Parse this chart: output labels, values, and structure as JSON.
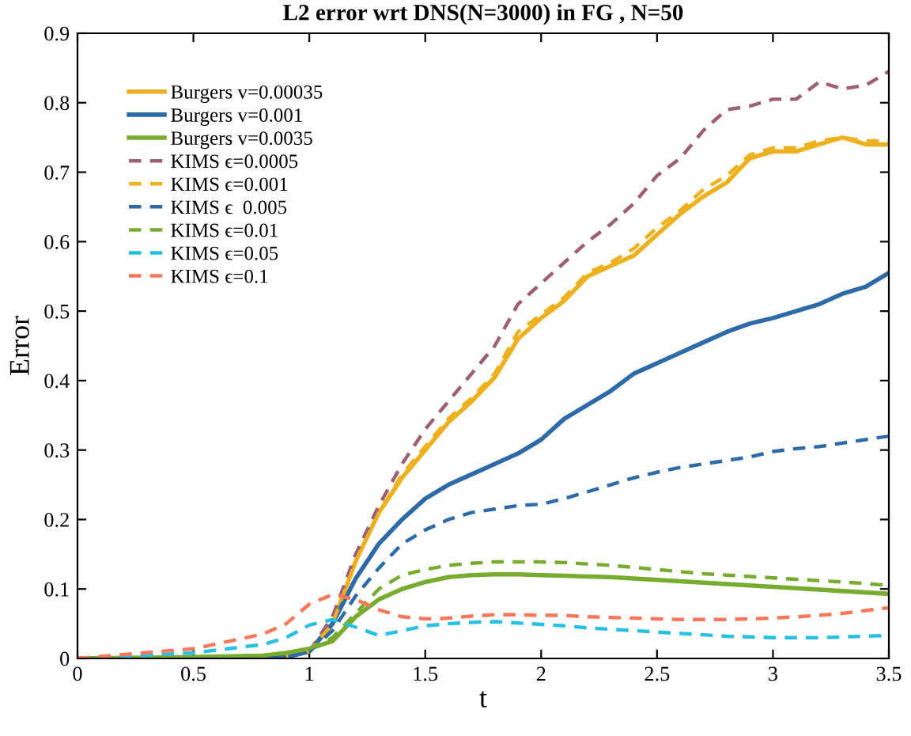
{
  "chart_data": {
    "type": "line",
    "title": "L2 error wrt DNS(N=3000) in FG , N=50",
    "xlabel": "t",
    "ylabel": "Error",
    "x": [
      0,
      0.5,
      0.8,
      0.9,
      1.0,
      1.1,
      1.2,
      1.3,
      1.4,
      1.5,
      1.6,
      1.7,
      1.8,
      1.9,
      2.0,
      2.1,
      2.2,
      2.3,
      2.4,
      2.5,
      2.6,
      2.7,
      2.8,
      2.9,
      3.0,
      3.1,
      3.2,
      3.3,
      3.4,
      3.5
    ],
    "series": [
      {
        "name": "Burgers v=0.00035",
        "color": "#edb120",
        "line_style": "solid",
        "values": [
          null,
          null,
          null,
          0.003,
          0.01,
          0.05,
          0.14,
          0.21,
          0.26,
          0.3,
          0.34,
          0.37,
          0.405,
          0.46,
          0.49,
          0.515,
          0.55,
          0.565,
          0.58,
          0.61,
          0.64,
          0.665,
          0.685,
          0.72,
          0.73,
          0.73,
          0.74,
          0.75,
          0.74,
          0.74
        ]
      },
      {
        "name": "Burgers v=0.001",
        "color": "#2e6aa8",
        "line_style": "solid",
        "values": [
          0,
          0,
          0,
          0.002,
          0.01,
          0.05,
          0.115,
          0.165,
          0.2,
          0.23,
          0.25,
          0.265,
          0.28,
          0.295,
          0.315,
          0.345,
          0.365,
          0.385,
          0.41,
          0.425,
          0.44,
          0.455,
          0.47,
          0.482,
          0.49,
          0.5,
          0.51,
          0.525,
          0.535,
          0.555
        ]
      },
      {
        "name": "Burgers v=0.0035",
        "color": "#77ac30",
        "line_style": "solid",
        "values": [
          0,
          0.002,
          0.004,
          0.008,
          0.014,
          0.025,
          0.06,
          0.085,
          0.1,
          0.11,
          0.117,
          0.12,
          0.121,
          0.121,
          0.12,
          0.119,
          0.118,
          0.117,
          0.115,
          0.113,
          0.111,
          0.109,
          0.107,
          0.105,
          0.103,
          0.101,
          0.099,
          0.097,
          0.095,
          0.093
        ]
      },
      {
        "name": "KIMS ϵ=0.0005",
        "color": "#9e5f73",
        "line_style": "dashed",
        "values": [
          0,
          0,
          0,
          0.003,
          0.01,
          0.06,
          0.15,
          0.22,
          0.28,
          0.33,
          0.37,
          0.41,
          0.45,
          0.51,
          0.54,
          0.57,
          0.6,
          0.625,
          0.655,
          0.695,
          0.72,
          0.76,
          0.79,
          0.795,
          0.805,
          0.805,
          0.83,
          0.82,
          0.825,
          0.845
        ]
      },
      {
        "name": "KIMS ϵ=0.001",
        "color": "#edb120",
        "line_style": "dashed",
        "values": [
          null,
          null,
          null,
          0.003,
          0.01,
          0.05,
          0.14,
          0.21,
          0.265,
          0.305,
          0.345,
          0.375,
          0.41,
          0.47,
          0.495,
          0.52,
          0.555,
          0.57,
          0.59,
          0.62,
          0.645,
          0.675,
          0.695,
          0.725,
          0.735,
          0.735,
          0.745,
          0.75,
          0.745,
          0.745
        ]
      },
      {
        "name": "KIMS ϵ  0.005",
        "color": "#2e6aa8",
        "line_style": "dashed",
        "values": [
          0,
          0,
          0,
          0.002,
          0.01,
          0.04,
          0.09,
          0.13,
          0.165,
          0.185,
          0.2,
          0.21,
          0.215,
          0.22,
          0.222,
          0.23,
          0.24,
          0.25,
          0.26,
          0.268,
          0.275,
          0.28,
          0.285,
          0.29,
          0.298,
          0.302,
          0.305,
          0.31,
          0.315,
          0.32
        ]
      },
      {
        "name": "KIMS ϵ=0.01",
        "color": "#77ac30",
        "line_style": "dashed",
        "values": [
          0,
          0.002,
          0.004,
          0.008,
          0.014,
          0.03,
          0.065,
          0.1,
          0.12,
          0.128,
          0.134,
          0.137,
          0.139,
          0.139,
          0.139,
          0.138,
          0.136,
          0.134,
          0.131,
          0.128,
          0.125,
          0.122,
          0.12,
          0.118,
          0.116,
          0.114,
          0.112,
          0.11,
          0.108,
          0.105
        ]
      },
      {
        "name": "KIMS ϵ=0.05",
        "color": "#27c0e3",
        "line_style": "dashed",
        "values": [
          0,
          0.008,
          0.02,
          0.03,
          0.048,
          0.056,
          0.045,
          0.033,
          0.04,
          0.047,
          0.05,
          0.052,
          0.053,
          0.051,
          0.049,
          0.047,
          0.044,
          0.042,
          0.04,
          0.038,
          0.036,
          0.034,
          0.032,
          0.031,
          0.03,
          0.03,
          0.03,
          0.031,
          0.032,
          0.033
        ]
      },
      {
        "name": "KIMS ϵ=0.1",
        "color": "#f9785b",
        "line_style": "dashed",
        "values": [
          0,
          0.014,
          0.035,
          0.05,
          0.078,
          0.092,
          0.085,
          0.07,
          0.06,
          0.057,
          0.058,
          0.061,
          0.063,
          0.063,
          0.062,
          0.062,
          0.06,
          0.059,
          0.058,
          0.057,
          0.056,
          0.056,
          0.056,
          0.057,
          0.058,
          0.06,
          0.062,
          0.065,
          0.069,
          0.073
        ]
      }
    ],
    "xlim": [
      0,
      3.5
    ],
    "ylim": [
      0,
      0.9
    ],
    "xticks": [
      0,
      0.5,
      1,
      1.5,
      2,
      2.5,
      3,
      3.5
    ],
    "yticks": [
      0,
      0.1,
      0.2,
      0.3,
      0.4,
      0.5,
      0.6,
      0.7,
      0.8,
      0.9
    ],
    "grid": false,
    "legend": "top left",
    "marker": "none"
  }
}
